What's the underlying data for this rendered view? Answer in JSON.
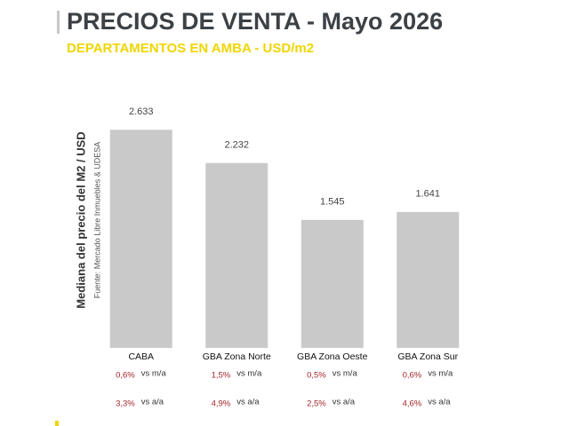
{
  "chart_data": {
    "type": "bar",
    "title": "PRECIOS DE VENTA -  Mayo 2026",
    "subtitle": "DEPARTAMENTOS EN AMBA - USD/m2",
    "y_label": "Mediana del precio del M2 / USD",
    "source": "Fuente: Mercado Libre Inmuebles & UDESA",
    "categories": [
      "CABA",
      "GBA Zona Norte",
      "GBA Zona Oeste",
      "GBA Zona Sur"
    ],
    "values": [
      2633,
      2232,
      1545,
      1641
    ],
    "value_labels": [
      "2.633",
      "2.232",
      "1.545",
      "1.641"
    ],
    "color": "#c9c9c9",
    "ylim": [
      0,
      3000
    ],
    "mom": {
      "label": "vs m/a",
      "values": [
        {
          "value": 0.6,
          "label": "0,6%"
        },
        {
          "value": 1.5,
          "label": "1,5%"
        },
        {
          "value": 0.5,
          "label": "0,5%"
        },
        {
          "value": 0.6,
          "label": "0,6%"
        }
      ]
    },
    "yoy": {
      "label": "vs a/a",
      "values": [
        {
          "value": 3.3,
          "label": "3,3%"
        },
        {
          "value": 4.9,
          "label": "4,9%"
        },
        {
          "value": 2.5,
          "label": "2,5%"
        },
        {
          "value": 4.6,
          "label": "4,6%"
        }
      ]
    }
  }
}
